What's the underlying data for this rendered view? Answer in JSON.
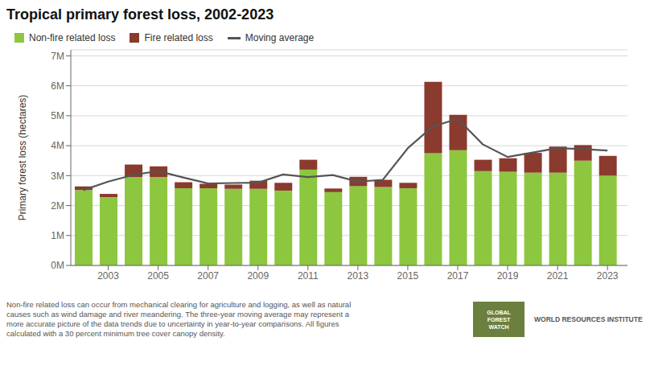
{
  "chart_data": {
    "type": "bar",
    "title": "Tropical primary forest loss, 2002-2023",
    "ylabel": "Primary forest loss (hectares)",
    "stacked": true,
    "grid": true,
    "legend": "upper left",
    "x": [
      2002,
      2003,
      2004,
      2005,
      2006,
      2007,
      2008,
      2009,
      2010,
      2011,
      2012,
      2013,
      2014,
      2015,
      2016,
      2017,
      2018,
      2019,
      2020,
      2021,
      2022,
      2023
    ],
    "series": [
      {
        "name": "Non-fire related loss",
        "type": "bar",
        "color": "#8dc63f",
        "values": [
          2520000,
          2280000,
          2950000,
          2950000,
          2580000,
          2580000,
          2560000,
          2560000,
          2500000,
          3200000,
          2450000,
          2650000,
          2620000,
          2580000,
          3750000,
          3850000,
          3150000,
          3130000,
          3100000,
          3100000,
          3500000,
          3000000
        ]
      },
      {
        "name": "Fire related loss",
        "type": "bar",
        "color": "#8b3a2e",
        "values": [
          120000,
          110000,
          420000,
          360000,
          200000,
          150000,
          140000,
          270000,
          260000,
          330000,
          120000,
          310000,
          240000,
          180000,
          2380000,
          1180000,
          380000,
          450000,
          660000,
          870000,
          520000,
          660000
        ]
      },
      {
        "name": "Moving average",
        "type": "line",
        "color": "#555555",
        "values": [
          2515000,
          2800000,
          3023333.3333333335,
          3153333.3333333335,
          2940000,
          2736666.6666666665,
          2753333.3333333335,
          2763333.3333333335,
          3040000,
          2953333.3333333335,
          3020000,
          2796666.6666666665,
          2860000,
          3916666.6666666665,
          4640000,
          4896666.666666667,
          4046666.6666666665,
          3623333.3333333335,
          3770000,
          3916666.6666666665,
          3883333.3333333335,
          3840000
        ]
      }
    ],
    "xlim": [
      2001.5,
      2023.8
    ],
    "xticks": [
      2003,
      2005,
      2007,
      2009,
      2011,
      2013,
      2015,
      2017,
      2019,
      2021,
      2023
    ],
    "ylim": [
      0,
      7200000
    ],
    "yticks": [
      {
        "value": 0,
        "label": "0M"
      },
      {
        "value": 1000000,
        "label": "1M"
      },
      {
        "value": 2000000,
        "label": "2M"
      },
      {
        "value": 3000000,
        "label": "3M"
      },
      {
        "value": 4000000,
        "label": "4M"
      },
      {
        "value": 5000000,
        "label": "5M"
      },
      {
        "value": 6000000,
        "label": "6M"
      },
      {
        "value": 7000000,
        "label": "7M"
      }
    ],
    "annotations": [
      "Non-fire related loss can occur from mechanical clearing for agriculture and logging, as well as natural\ncauses such as wind damage and river meandering. The three-year moving average may represent a\nmore accurate picture of the data trends due to uncertainty in year-to-year comparisons. All figures\ncalculated with a 30 percent minimum tree cover canopy density.",
      "GLOBAL\nFOREST\nWATCH",
      "WORLD RESOURCES INSTITUTE"
    ]
  }
}
